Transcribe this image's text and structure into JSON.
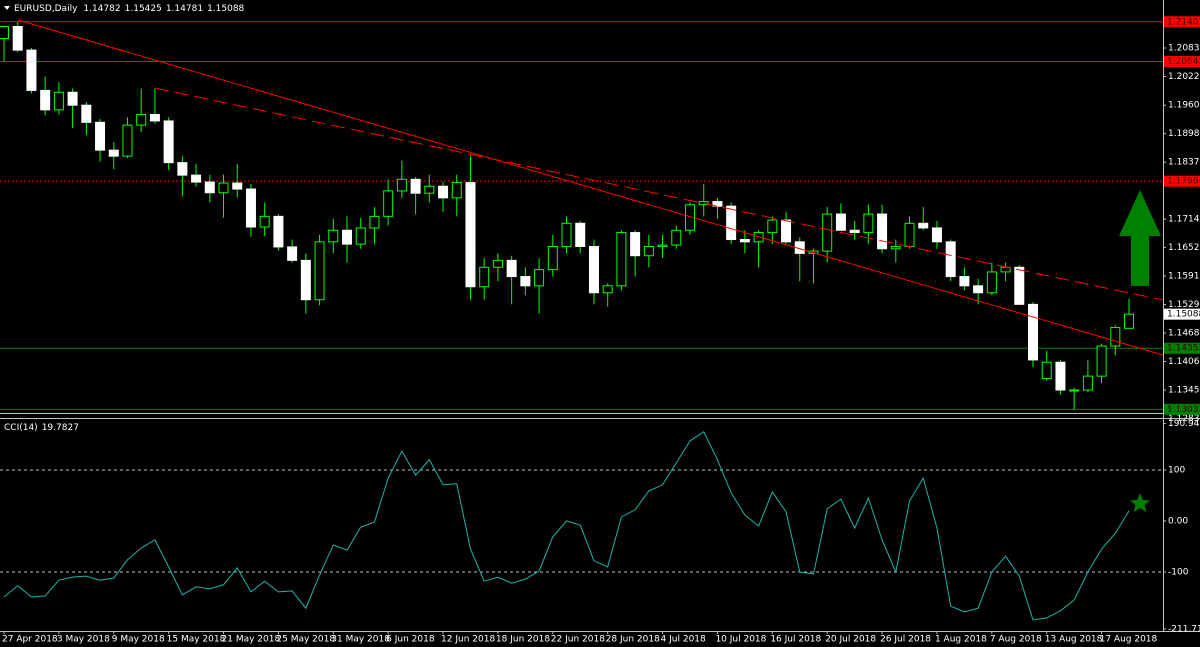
{
  "chart_data": [
    {
      "type": "candlestick",
      "title": "EURUSD,Daily",
      "categories": [
        "27 Apr 2018",
        null,
        null,
        null,
        "3 May 2018",
        null,
        null,
        null,
        "9 May 2018",
        null,
        null,
        null,
        "15 May 2018",
        null,
        null,
        null,
        "21 May 2018",
        null,
        null,
        null,
        "25 May 2018",
        null,
        null,
        null,
        "31 May 2018",
        null,
        null,
        null,
        "6 Jun 2018",
        null,
        null,
        null,
        "12 Jun 2018",
        null,
        null,
        null,
        "18 Jun 2018",
        null,
        null,
        null,
        "22 Jun 2018",
        null,
        null,
        null,
        "28 Jun 2018",
        null,
        null,
        null,
        "4 Jul 2018",
        null,
        null,
        null,
        "10 Jul 2018",
        null,
        null,
        null,
        "16 Jul 2018",
        null,
        null,
        null,
        "20 Jul 2018",
        null,
        null,
        null,
        "26 Jul 2018",
        null,
        null,
        null,
        "1 Aug 2018",
        null,
        null,
        null,
        "7 Aug 2018",
        null,
        null,
        null,
        "13 Aug 2018",
        null,
        null,
        null,
        "17 Aug 2018",
        null,
        null
      ],
      "open": [
        1.2104,
        1.213,
        1.2079,
        1.1992,
        1.195,
        1.1988,
        1.196,
        1.1923,
        1.1863,
        1.185,
        1.1917,
        1.194,
        1.1926,
        1.1836,
        1.1809,
        1.1794,
        1.1771,
        1.1792,
        1.1779,
        1.1697,
        1.172,
        1.1654,
        1.1625,
        1.154,
        1.1665,
        1.169,
        1.166,
        1.1695,
        1.172,
        1.1775,
        1.18,
        1.177,
        1.1785,
        1.176,
        1.1793,
        1.1568,
        1.161,
        1.1625,
        1.159,
        1.157,
        1.1605,
        1.1655,
        1.1705,
        1.1655,
        1.1555,
        1.157,
        1.1685,
        1.1635,
        1.1655,
        1.1658,
        1.169,
        1.1745,
        1.1752,
        1.1742,
        1.167,
        1.1665,
        1.1685,
        1.1712,
        1.1665,
        1.164,
        1.1645,
        1.1725,
        1.169,
        1.1685,
        1.1725,
        1.165,
        1.1655,
        1.1705,
        1.1695,
        1.1665,
        1.159,
        1.157,
        1.1555,
        1.16,
        1.161,
        1.153,
        1.137,
        1.1405,
        1.1345,
        1.1345,
        1.1375,
        1.144,
        1.14782
      ],
      "high": [
        1.2132,
        1.214,
        1.2084,
        1.2022,
        1.201,
        1.1996,
        1.1967,
        1.193,
        1.188,
        1.1934,
        1.1996,
        1.1996,
        1.1934,
        1.185,
        1.1833,
        1.181,
        1.181,
        1.1833,
        1.179,
        1.175,
        1.1725,
        1.167,
        1.164,
        1.168,
        1.1715,
        1.172,
        1.1717,
        1.174,
        1.18,
        1.184,
        1.1805,
        1.181,
        1.1795,
        1.181,
        1.1852,
        1.163,
        1.164,
        1.1635,
        1.161,
        1.163,
        1.168,
        1.172,
        1.171,
        1.167,
        1.1575,
        1.169,
        1.169,
        1.168,
        1.168,
        1.17,
        1.175,
        1.179,
        1.176,
        1.175,
        1.169,
        1.169,
        1.172,
        1.173,
        1.1675,
        1.165,
        1.174,
        1.1748,
        1.171,
        1.1745,
        1.1745,
        1.167,
        1.172,
        1.174,
        1.171,
        1.167,
        1.161,
        1.1585,
        1.162,
        1.162,
        1.1615,
        1.1535,
        1.143,
        1.141,
        1.135,
        1.141,
        1.1445,
        1.1485,
        1.15425
      ],
      "low": [
        1.2055,
        1.2075,
        1.1986,
        1.1938,
        1.194,
        1.1911,
        1.1896,
        1.1838,
        1.1822,
        1.1846,
        1.1902,
        1.192,
        1.182,
        1.1763,
        1.1784,
        1.175,
        1.1717,
        1.176,
        1.1676,
        1.1677,
        1.1646,
        1.162,
        1.151,
        1.1528,
        1.164,
        1.162,
        1.165,
        1.166,
        1.17,
        1.176,
        1.1725,
        1.175,
        1.173,
        1.172,
        1.154,
        1.154,
        1.158,
        1.153,
        1.155,
        1.151,
        1.159,
        1.164,
        1.164,
        1.153,
        1.1525,
        1.156,
        1.159,
        1.161,
        1.163,
        1.165,
        1.168,
        1.172,
        1.1715,
        1.166,
        1.164,
        1.161,
        1.166,
        1.166,
        1.158,
        1.1575,
        1.162,
        1.169,
        1.167,
        1.166,
        1.164,
        1.162,
        1.165,
        1.169,
        1.165,
        1.158,
        1.156,
        1.153,
        1.155,
        1.158,
        1.153,
        1.1395,
        1.1365,
        1.1335,
        1.1303,
        1.134,
        1.136,
        1.142,
        1.14781
      ],
      "close": [
        1.213,
        1.2079,
        1.1992,
        1.195,
        1.1988,
        1.196,
        1.1923,
        1.1863,
        1.185,
        1.1917,
        1.194,
        1.1926,
        1.1836,
        1.1809,
        1.1794,
        1.1771,
        1.1792,
        1.1779,
        1.1697,
        1.172,
        1.1654,
        1.1625,
        1.154,
        1.1665,
        1.169,
        1.166,
        1.1695,
        1.172,
        1.1775,
        1.18,
        1.177,
        1.1785,
        1.176,
        1.1793,
        1.1568,
        1.161,
        1.1625,
        1.159,
        1.157,
        1.1605,
        1.1655,
        1.1705,
        1.1655,
        1.1555,
        1.157,
        1.1685,
        1.1635,
        1.1655,
        1.1658,
        1.169,
        1.1745,
        1.1752,
        1.1742,
        1.167,
        1.1665,
        1.1685,
        1.1712,
        1.1665,
        1.164,
        1.1645,
        1.1725,
        1.169,
        1.1685,
        1.1725,
        1.165,
        1.1655,
        1.1705,
        1.1695,
        1.1665,
        1.159,
        1.157,
        1.1555,
        1.16,
        1.161,
        1.153,
        1.141,
        1.1405,
        1.1345,
        1.1345,
        1.1375,
        1.144,
        1.148,
        1.15088
      ],
      "up_color": "#00ff00",
      "down_color": "#ffffff",
      "ylim": [
        1.12835,
        1.21872
      ],
      "yticks": [
        1.20835,
        {
          "value": 1.2022,
          "label": "1.20220"
        },
        {
          "value": 1.196,
          "label": "1.19600"
        },
        1.18985,
        {
          "value": 1.1837,
          "label": "1.18370"
        },
        {
          "value": 1.1714,
          "label": "1.17140"
        },
        1.16525,
        {
          "value": 1.1591,
          "label": "1.15910"
        },
        1.15295,
        {
          "value": 1.1468,
          "label": "1.14680"
        },
        1.14065,
        {
          "value": 1.1345,
          "label": "1.13450"
        },
        1.12835
      ],
      "levels": [
        {
          "value": 1.21401,
          "color": "#ff0000",
          "style": "solid"
        },
        {
          "value": 1.20543,
          "color": "#ff0000",
          "style": "solid"
        },
        {
          "value": 1.1796,
          "label": "1.17960",
          "color": "#ff0000",
          "style": "dotted"
        },
        {
          "value": 1.14352,
          "color": "#008000",
          "style": "solid"
        },
        {
          "value": 1.13033,
          "color": "#008000",
          "style": "solid"
        }
      ]
    },
    {
      "type": "line",
      "title": "CCI(14)",
      "color": "#20b2aa",
      "values": [
        -149,
        -127,
        -149,
        -147,
        -116,
        -110,
        -108,
        -116,
        -112,
        -76,
        -53,
        -37,
        -90,
        -145,
        -129,
        -133,
        -125,
        -92,
        -139,
        -118,
        -139,
        -137,
        -171,
        -106,
        -47,
        -57,
        -12,
        -2,
        84,
        137,
        90,
        120,
        71,
        73,
        -55,
        -118,
        -110,
        -122,
        -114,
        -98,
        -31,
        0,
        -8,
        -78,
        -90,
        8,
        22,
        59,
        71,
        114,
        157,
        175,
        120,
        55,
        12,
        -10,
        57,
        18,
        -100,
        -104,
        24,
        43,
        -14,
        45,
        -37,
        -100,
        39,
        84,
        -14,
        -167,
        -178,
        -171,
        -100,
        -69,
        -108,
        -194,
        -190,
        -176,
        -155,
        -100,
        -55,
        -24,
        19.7827
      ],
      "ylim": [
        -211.7134,
        190.9406
      ],
      "yticks": [
        190.9406,
        100,
        {
          "value": 0,
          "label": "0.00"
        },
        -100,
        -211.7134
      ],
      "levels": [
        100,
        -100
      ]
    }
  ]
}
